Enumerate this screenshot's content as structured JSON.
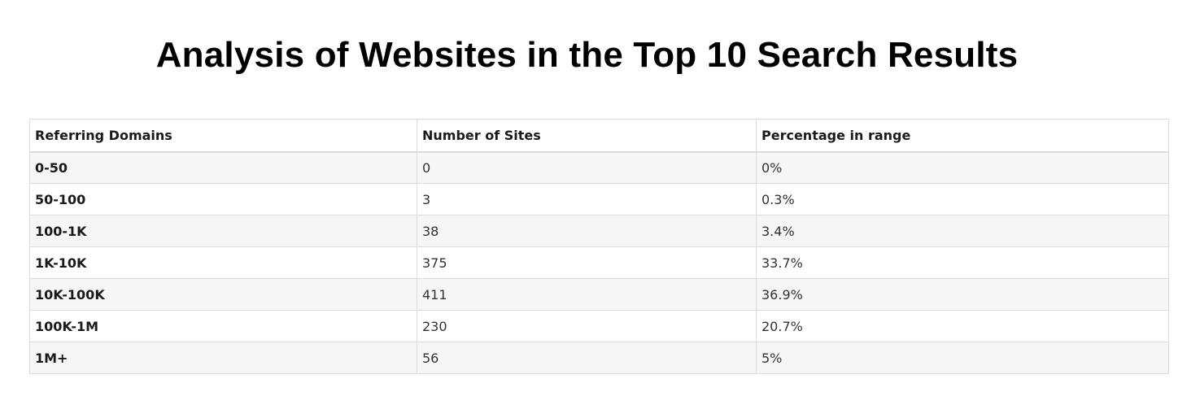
{
  "title": "Analysis of Websites in the Top 10 Search Results",
  "table": {
    "headers": [
      "Referring Domains",
      "Number of Sites",
      "Percentage in range"
    ],
    "rows": [
      [
        "0-50",
        "0",
        "0%"
      ],
      [
        "50-100",
        "3",
        "0.3%"
      ],
      [
        "100-1K",
        "38",
        "3.4%"
      ],
      [
        "1K-10K",
        "375",
        "33.7%"
      ],
      [
        "10K-100K",
        "411",
        "36.9%"
      ],
      [
        "100K-1M",
        "230",
        "20.7%"
      ],
      [
        "1M+",
        "56",
        "5%"
      ]
    ]
  }
}
